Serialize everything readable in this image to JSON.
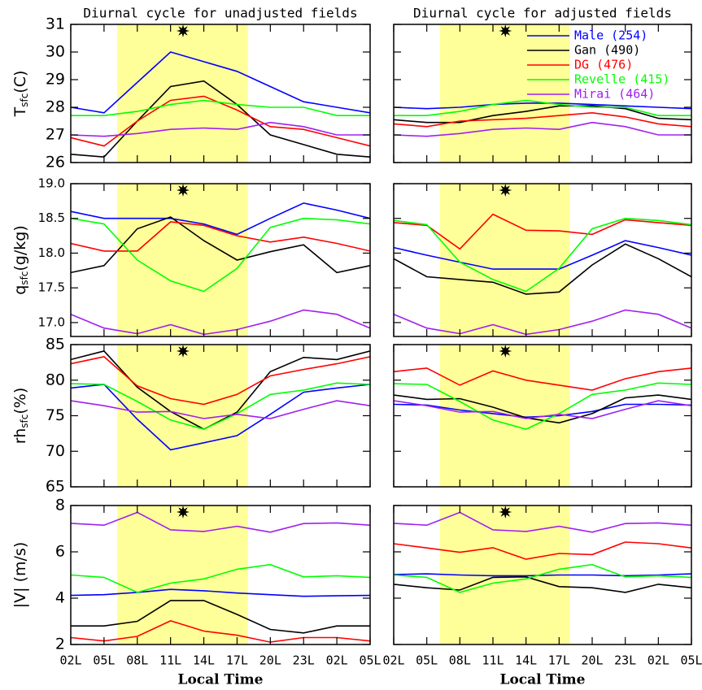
{
  "chart_data": [
    {
      "type": "line",
      "title": "Diurnal cycle for unadjusted fields",
      "ylabel": {
        "text": "T",
        "sub": "sfc",
        "unit": "(C)"
      },
      "categories": [
        null,
        null,
        null,
        null,
        null,
        null,
        null,
        null,
        null,
        null
      ],
      "ylim": [
        26,
        31
      ],
      "yticks": [
        26,
        27,
        28,
        29,
        30,
        31
      ],
      "series": [
        {
          "color": "#0000ff",
          "values": [
            28.0,
            27.8,
            28.9,
            30.0,
            29.65,
            29.3,
            28.75,
            28.2,
            28.0,
            27.8
          ]
        },
        {
          "color": "#000000",
          "values": [
            26.3,
            26.2,
            27.5,
            28.75,
            28.95,
            28.1,
            27.0,
            26.65,
            26.3,
            26.2
          ]
        },
        {
          "color": "#ff0000",
          "values": [
            26.9,
            26.6,
            27.5,
            28.25,
            28.4,
            27.9,
            27.3,
            27.2,
            26.9,
            26.6
          ]
        },
        {
          "color": "#00ff00",
          "values": [
            27.7,
            27.7,
            27.85,
            28.1,
            28.25,
            28.1,
            28.0,
            28.0,
            27.7,
            27.7
          ]
        },
        {
          "color": "#a020f0",
          "values": [
            27.0,
            26.95,
            27.05,
            27.2,
            27.25,
            27.2,
            27.45,
            27.3,
            27.0,
            27.0
          ]
        }
      ]
    },
    {
      "type": "line",
      "title": "Diurnal cycle for adjusted fields",
      "categories": [
        null,
        null,
        null,
        null,
        null,
        null,
        null,
        null,
        null,
        null
      ],
      "ylim": [
        26,
        31
      ],
      "yticks": [
        26,
        27,
        28,
        29,
        30,
        31
      ],
      "ytick_labels": false,
      "series": [
        {
          "name": "Male (254)",
          "color": "#0000ff",
          "values": [
            28.0,
            27.95,
            28.0,
            28.1,
            28.15,
            28.15,
            28.1,
            28.05,
            28.0,
            27.95
          ]
        },
        {
          "name": "Gan (490)",
          "color": "#000000",
          "values": [
            27.55,
            27.45,
            27.45,
            27.7,
            27.85,
            28.05,
            28.05,
            27.95,
            27.6,
            27.55
          ]
        },
        {
          "name": "DG (476)",
          "color": "#ff0000",
          "values": [
            27.4,
            27.3,
            27.5,
            27.55,
            27.6,
            27.7,
            27.8,
            27.65,
            27.4,
            27.3
          ]
        },
        {
          "name": "Revelle (415)",
          "color": "#00ff00",
          "values": [
            27.7,
            27.7,
            27.85,
            28.1,
            28.25,
            28.1,
            28.0,
            28.0,
            27.7,
            27.7
          ]
        },
        {
          "name": "Mirai (464)",
          "color": "#a020f0",
          "values": [
            27.0,
            26.95,
            27.05,
            27.2,
            27.25,
            27.2,
            27.45,
            27.3,
            27.0,
            27.0
          ]
        }
      ]
    },
    {
      "type": "line",
      "ylabel": {
        "text": "q",
        "sub": "sfc",
        "unit": "(g/kg)"
      },
      "categories": [
        null,
        null,
        null,
        null,
        null,
        null,
        null,
        null,
        null,
        null
      ],
      "ylim": [
        16.8,
        19.0
      ],
      "yticks": [
        {
          "value": 17,
          "label": "17.0"
        },
        {
          "value": 17.5,
          "label": "17.5"
        },
        {
          "value": 18,
          "label": "18.0"
        },
        {
          "value": 18.5,
          "label": "18.5"
        },
        {
          "value": 19,
          "label": "19.0"
        }
      ],
      "series": [
        {
          "color": "#0000ff",
          "values": [
            18.6,
            18.5,
            18.5,
            18.5,
            18.42,
            18.27,
            18.5,
            18.72,
            18.62,
            18.5
          ]
        },
        {
          "color": "#000000",
          "values": [
            17.72,
            17.82,
            18.35,
            18.52,
            18.18,
            17.9,
            18.02,
            18.12,
            17.72,
            17.82
          ]
        },
        {
          "color": "#ff0000",
          "values": [
            18.14,
            18.03,
            18.03,
            18.45,
            18.4,
            18.25,
            18.16,
            18.23,
            18.14,
            18.03
          ]
        },
        {
          "color": "#00ff00",
          "values": [
            18.5,
            18.42,
            17.9,
            17.6,
            17.45,
            17.78,
            18.37,
            18.5,
            18.48,
            18.42
          ]
        },
        {
          "color": "#a020f0",
          "values": [
            17.12,
            16.92,
            16.84,
            16.97,
            16.83,
            16.9,
            17.02,
            17.18,
            17.12,
            16.92
          ]
        }
      ]
    },
    {
      "type": "line",
      "categories": [
        null,
        null,
        null,
        null,
        null,
        null,
        null,
        null,
        null,
        null
      ],
      "ylim": [
        16.8,
        19.0
      ],
      "yticks": [
        17,
        17.5,
        18,
        18.5,
        19
      ],
      "ytick_labels": false,
      "series": [
        {
          "color": "#0000ff",
          "values": [
            18.08,
            17.97,
            17.87,
            17.77,
            17.77,
            17.77,
            17.97,
            18.18,
            18.08,
            17.97
          ]
        },
        {
          "color": "#000000",
          "values": [
            17.92,
            17.66,
            17.62,
            17.58,
            17.41,
            17.44,
            17.83,
            18.13,
            17.92,
            17.66
          ]
        },
        {
          "color": "#ff0000",
          "values": [
            18.44,
            18.4,
            18.06,
            18.56,
            18.33,
            18.32,
            18.27,
            18.48,
            18.44,
            18.4
          ]
        },
        {
          "color": "#00ff00",
          "values": [
            18.47,
            18.41,
            17.87,
            17.62,
            17.45,
            17.78,
            18.35,
            18.5,
            18.47,
            18.41
          ]
        },
        {
          "color": "#a020f0",
          "values": [
            17.12,
            16.92,
            16.84,
            16.97,
            16.83,
            16.9,
            17.02,
            17.18,
            17.12,
            16.92
          ]
        }
      ]
    },
    {
      "type": "line",
      "ylabel": {
        "text": "rh",
        "sub": "sfc",
        "unit": "(%)"
      },
      "categories": [
        null,
        null,
        null,
        null,
        null,
        null,
        null,
        null,
        null,
        null
      ],
      "ylim": [
        65,
        85
      ],
      "yticks": [
        65,
        70,
        75,
        80,
        85
      ],
      "series": [
        {
          "color": "#0000ff",
          "values": [
            78.9,
            79.4,
            74.5,
            70.2,
            71.2,
            72.2,
            75.2,
            78.3,
            78.9,
            79.4
          ]
        },
        {
          "color": "#000000",
          "values": [
            82.9,
            84.1,
            79.0,
            75.6,
            73.1,
            75.5,
            81.2,
            83.2,
            82.9,
            84.1
          ]
        },
        {
          "color": "#ff0000",
          "values": [
            82.3,
            83.3,
            79.2,
            77.4,
            76.6,
            78.0,
            80.6,
            81.5,
            82.3,
            83.3
          ]
        },
        {
          "color": "#00ff00",
          "values": [
            79.5,
            79.4,
            77.0,
            74.4,
            73.1,
            75.3,
            78.0,
            78.6,
            79.6,
            79.4
          ]
        },
        {
          "color": "#a020f0",
          "values": [
            77.1,
            76.4,
            75.5,
            75.6,
            74.6,
            75.2,
            74.6,
            75.9,
            77.1,
            76.4
          ]
        }
      ]
    },
    {
      "type": "line",
      "categories": [
        null,
        null,
        null,
        null,
        null,
        null,
        null,
        null,
        null,
        null
      ],
      "ylim": [
        65,
        85
      ],
      "yticks": [
        65,
        70,
        75,
        80,
        85
      ],
      "ytick_labels": false,
      "series": [
        {
          "color": "#0000ff",
          "values": [
            76.6,
            76.5,
            75.8,
            75.3,
            74.8,
            75.0,
            75.6,
            76.6,
            76.6,
            76.5
          ]
        },
        {
          "color": "#000000",
          "values": [
            77.9,
            77.3,
            77.4,
            76.2,
            74.7,
            74.0,
            75.3,
            77.5,
            77.9,
            77.3
          ]
        },
        {
          "color": "#ff0000",
          "values": [
            81.2,
            81.7,
            79.3,
            81.3,
            80.0,
            79.3,
            78.6,
            80.2,
            81.2,
            81.7
          ]
        },
        {
          "color": "#00ff00",
          "values": [
            79.5,
            79.4,
            77.0,
            74.4,
            73.1,
            75.3,
            78.0,
            78.6,
            79.6,
            79.4
          ]
        },
        {
          "color": "#a020f0",
          "values": [
            77.1,
            76.4,
            75.5,
            75.6,
            74.6,
            75.2,
            74.6,
            75.9,
            77.1,
            76.4
          ]
        }
      ]
    },
    {
      "type": "line",
      "ylabel": {
        "text": "|V| (m/s)"
      },
      "xlabel": "Local Time",
      "categories": [
        "02L",
        "05L",
        "08L",
        "11L",
        "14L",
        "17L",
        "20L",
        "23L",
        "02L",
        "05L"
      ],
      "ylim": [
        2,
        8
      ],
      "yticks": [
        2,
        4,
        6,
        8
      ],
      "series": [
        {
          "color": "#0000ff",
          "values": [
            4.12,
            4.15,
            4.25,
            4.38,
            4.32,
            4.22,
            4.15,
            4.08,
            4.1,
            4.12
          ]
        },
        {
          "color": "#000000",
          "values": [
            2.8,
            2.8,
            3.0,
            3.9,
            3.9,
            3.3,
            2.65,
            2.5,
            2.8,
            2.8
          ]
        },
        {
          "color": "#ff0000",
          "values": [
            2.3,
            2.15,
            2.35,
            3.02,
            2.58,
            2.4,
            2.1,
            2.3,
            2.3,
            2.15
          ]
        },
        {
          "color": "#00ff00",
          "values": [
            5.0,
            4.9,
            4.25,
            4.65,
            4.83,
            5.25,
            5.45,
            4.92,
            4.97,
            4.9
          ]
        },
        {
          "color": "#a020f0",
          "values": [
            7.23,
            7.15,
            7.7,
            6.95,
            6.88,
            7.1,
            6.85,
            7.22,
            7.25,
            7.15
          ]
        }
      ]
    },
    {
      "type": "line",
      "xlabel": "Local Time",
      "categories": [
        "02L",
        "05L",
        "08L",
        "11L",
        "14L",
        "17L",
        "20L",
        "23L",
        "02L",
        "05L"
      ],
      "ylim": [
        2,
        8
      ],
      "yticks": [
        2,
        4,
        6,
        8
      ],
      "ytick_labels": false,
      "series": [
        {
          "color": "#0000ff",
          "values": [
            5.02,
            5.05,
            5.0,
            4.97,
            4.97,
            5.0,
            5.0,
            4.97,
            5.0,
            5.05
          ]
        },
        {
          "color": "#000000",
          "values": [
            4.6,
            4.45,
            4.35,
            4.9,
            4.92,
            4.5,
            4.45,
            4.25,
            4.6,
            4.45
          ]
        },
        {
          "color": "#ff0000",
          "values": [
            6.35,
            6.17,
            5.98,
            6.18,
            5.68,
            5.93,
            5.88,
            6.42,
            6.35,
            6.17
          ]
        },
        {
          "color": "#00ff00",
          "values": [
            5.0,
            4.9,
            4.25,
            4.65,
            4.83,
            5.25,
            5.45,
            4.92,
            4.97,
            4.9
          ]
        },
        {
          "color": "#a020f0",
          "values": [
            7.23,
            7.15,
            7.7,
            6.95,
            6.88,
            7.1,
            6.85,
            7.22,
            7.25,
            7.15
          ]
        }
      ]
    }
  ]
}
